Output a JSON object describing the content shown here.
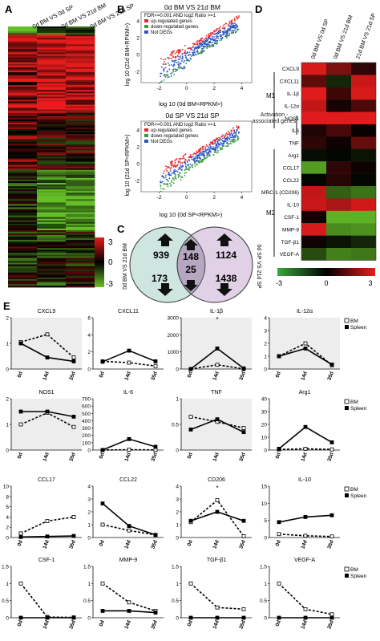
{
  "panel_letters": {
    "a": "A",
    "b": "B",
    "c": "C",
    "d": "D",
    "e": "E"
  },
  "panel_a": {
    "column_labels": [
      "0d BM VS 0d SP",
      "0d BM VS 21d BM",
      "0d BM VS 21d SP"
    ],
    "scale_ticks": [
      "3",
      "0",
      "-3"
    ]
  },
  "panel_b": {
    "top": {
      "title": "0d BM VS 21d BM",
      "xlabel": "log 10 (0d BM<RPKM>)",
      "ylabel": "log 10 (21d BM<RPKM>)",
      "legend_header": "FDR<=0.001 AND log2 Ratio >=1",
      "legend": [
        "up-regulated genes",
        "down-regulated genes",
        "Not DEGs"
      ],
      "xticks": [
        "-2",
        "0",
        "2",
        "4"
      ],
      "yticks": [
        "4",
        "2",
        "0",
        "-2"
      ]
    },
    "bottom": {
      "title": "0d SP VS 21d SP",
      "xlabel": "log 10 (0d SP<RPKM>)",
      "ylabel": "log 10 (21d SP<RPKM>)",
      "legend_header": "FDR<=0.001 AND log2 Ratio >=1",
      "legend": [
        "up-regulated genes",
        "down-regulated genes",
        "Not DEGs"
      ],
      "xticks": [
        "-2",
        "0",
        "2",
        "4"
      ],
      "yticks": [
        "4",
        "2",
        "0",
        "-2"
      ]
    },
    "colors": {
      "up": "#e8262b",
      "down": "#3c9a3c",
      "not": "#2a55c4"
    }
  },
  "panel_c": {
    "left_label": "0d BM VS 21d BM",
    "right_label": "0d SP VS 21d SP",
    "left_up": "939",
    "left_down": "173",
    "mid_up": "148",
    "mid_down": "25",
    "right_up": "1124",
    "right_down": "1438"
  },
  "panel_d": {
    "column_labels": [
      "0d BM VS 0d SP",
      "0d BM VS 21d BM",
      "21d BM VS 21d SP"
    ],
    "genes": [
      "CXCL9",
      "CXCL11",
      "IL-1β",
      "IL-12α",
      "NOS1",
      "IL6",
      "TNF",
      "Arg1",
      "CCL17",
      "CCL22",
      "MRC-1 (CD206)",
      "IL-10",
      "CSF-1",
      "MMP-9",
      "TGF-β1",
      "VEGF-A"
    ],
    "group_m1": "M1",
    "group_act": "Activation -associated genes",
    "group_m2": "M2",
    "scale_ticks": [
      "-3",
      "0",
      "3"
    ],
    "values": [
      [
        2.8,
        1.6,
        0.6
      ],
      [
        1.2,
        -0.6,
        2.6
      ],
      [
        2.9,
        0.8,
        2.8
      ],
      [
        2.5,
        0.3,
        1.0
      ],
      [
        2.9,
        2.9,
        2.9
      ],
      [
        0.4,
        0.9,
        0.1
      ],
      [
        0.6,
        0.2,
        1.3
      ],
      [
        -0.2,
        -0.1,
        -0.3
      ],
      [
        -2.5,
        0.6,
        0.2
      ],
      [
        -0.1,
        0.5,
        -0.1
      ],
      [
        2.5,
        -1.5,
        -1.8
      ],
      [
        2.6,
        2.2,
        2.7
      ],
      [
        0.2,
        -2.8,
        -2.8
      ],
      [
        2.8,
        -2.2,
        -2.3
      ],
      [
        0.2,
        -0.3,
        -0.6
      ],
      [
        -1.2,
        -2.0,
        -1.9
      ]
    ]
  },
  "chart_data": [
    {
      "type": "line",
      "title": "CXCL9",
      "x": [
        "0d",
        "14d",
        "35d"
      ],
      "ylim": [
        0,
        2
      ],
      "yticks": [
        "2",
        "1",
        "0"
      ],
      "series": [
        {
          "name": "BM",
          "values": [
            1.05,
            1.35,
            0.45
          ]
        },
        {
          "name": "Spleen",
          "values": [
            1.0,
            0.45,
            0.3
          ]
        }
      ]
    },
    {
      "type": "line",
      "title": "CXCL11",
      "x": [
        "0d",
        "14d",
        "35d"
      ],
      "ylim": [
        0,
        6
      ],
      "yticks": [
        "6",
        "4",
        "2",
        "0"
      ],
      "series": [
        {
          "name": "BM",
          "values": [
            0.9,
            0.75,
            0.35
          ]
        },
        {
          "name": "Spleen",
          "values": [
            0.85,
            2.15,
            0.9
          ]
        }
      ]
    },
    {
      "type": "line",
      "title": "IL-1β",
      "x": [
        "0d",
        "14d",
        "35d"
      ],
      "ylim": [
        0,
        3000
      ],
      "yticks": [
        "3000",
        "2000",
        "1000",
        "0"
      ],
      "series": [
        {
          "name": "BM",
          "values": [
            1,
            250,
            5
          ]
        },
        {
          "name": "Spleen",
          "values": [
            1,
            1200,
            40
          ]
        }
      ]
    },
    {
      "type": "line",
      "title": "IL-12α",
      "x": [
        "0d",
        "14d",
        "35d"
      ],
      "ylim": [
        0,
        4
      ],
      "yticks": [
        "4",
        "3",
        "2",
        "1",
        "0"
      ],
      "series": [
        {
          "name": "BM",
          "values": [
            1.0,
            2.0,
            0.3
          ]
        },
        {
          "name": "Spleen",
          "values": [
            1.0,
            1.6,
            0.35
          ]
        }
      ]
    }
  ],
  "more_charts": [
    {
      "type": "line",
      "title": "NOS1",
      "x": [
        "0d",
        "14d",
        "35d"
      ],
      "ylim": [
        0,
        2
      ],
      "yticks": [
        "2",
        "1",
        "0"
      ],
      "series": [
        {
          "name": "BM",
          "values": [
            1.0,
            1.45,
            0.9
          ]
        },
        {
          "name": "Spleen",
          "values": [
            1.5,
            1.5,
            1.3
          ]
        }
      ]
    },
    {
      "type": "line",
      "title": "IL-6",
      "x": [
        "0d",
        "14d",
        "35d"
      ],
      "ylim": [
        0,
        700
      ],
      "yticks": [
        "700",
        "600",
        "500",
        "400",
        "300",
        "200",
        "100",
        "0"
      ],
      "series": [
        {
          "name": "BM",
          "values": [
            1,
            5,
            2
          ]
        },
        {
          "name": "Spleen",
          "values": [
            1,
            150,
            45
          ]
        }
      ]
    },
    {
      "type": "line",
      "title": "TNF",
      "x": [
        "0d",
        "14d",
        "35d"
      ],
      "ylim": [
        0,
        1
      ],
      "yticks": [
        "1",
        "0.5",
        "0"
      ],
      "series": [
        {
          "name": "BM",
          "values": [
            0.65,
            0.55,
            0.43
          ]
        },
        {
          "name": "Spleen",
          "values": [
            0.4,
            0.6,
            0.35
          ]
        }
      ]
    },
    {
      "type": "line",
      "title": "Arg1",
      "x": [
        "0d",
        "14d",
        "35d"
      ],
      "ylim": [
        0,
        40
      ],
      "yticks": [
        "40",
        "30",
        "20",
        "10",
        "0"
      ],
      "series": [
        {
          "name": "BM",
          "values": [
            0.5,
            1,
            0.5
          ]
        },
        {
          "name": "Spleen",
          "values": [
            1,
            18,
            6
          ]
        }
      ]
    },
    {
      "type": "line",
      "title": "CCL17",
      "x": [
        "0d",
        "14d",
        "35d"
      ],
      "ylim": [
        0,
        10
      ],
      "yticks": [
        "10",
        "8",
        "6",
        "4",
        "2",
        "0"
      ],
      "series": [
        {
          "name": "BM",
          "values": [
            0.8,
            3.2,
            4.0
          ]
        },
        {
          "name": "Spleen",
          "values": [
            0.1,
            0.2,
            0.3
          ]
        }
      ]
    },
    {
      "type": "line",
      "title": "CCL22",
      "x": [
        "0d",
        "14d",
        "35d"
      ],
      "ylim": [
        0,
        4
      ],
      "yticks": [
        "4",
        "3",
        "2",
        "1",
        "0"
      ],
      "series": [
        {
          "name": "BM",
          "values": [
            1.0,
            0.55,
            0.2
          ]
        },
        {
          "name": "Spleen",
          "values": [
            2.65,
            0.9,
            0.2
          ]
        }
      ]
    },
    {
      "type": "line",
      "title": "CD206",
      "x": [
        "0d",
        "14d",
        "35d"
      ],
      "ylim": [
        0,
        4
      ],
      "yticks": [
        "4",
        "3",
        "2",
        "1",
        "0"
      ],
      "series": [
        {
          "name": "BM",
          "values": [
            1.2,
            2.9,
            0.1
          ]
        },
        {
          "name": "Spleen",
          "values": [
            1.3,
            2.0,
            1.3
          ]
        }
      ]
    },
    {
      "type": "line",
      "title": "IL-10",
      "x": [
        "0d",
        "14d",
        "35d"
      ],
      "ylim": [
        0,
        15
      ],
      "yticks": [
        "15",
        "10",
        "5",
        "0"
      ],
      "series": [
        {
          "name": "BM",
          "values": [
            1.0,
            0.5,
            0.3
          ]
        },
        {
          "name": "Spleen",
          "values": [
            4.5,
            6.0,
            6.5
          ]
        }
      ]
    },
    {
      "type": "line",
      "title": "CSF-1",
      "x": [
        "0d",
        "14d",
        "35d"
      ],
      "ylim": [
        0,
        1.5
      ],
      "yticks": [
        "1.5",
        "1",
        "0.5",
        "0"
      ],
      "series": [
        {
          "name": "BM",
          "values": [
            1.0,
            0.02,
            0.01
          ]
        },
        {
          "name": "Spleen",
          "values": [
            0.0,
            0.0,
            0.0
          ]
        }
      ]
    },
    {
      "type": "line",
      "title": "MMP-9",
      "x": [
        "0d",
        "14d",
        "35d"
      ],
      "ylim": [
        0,
        1.5
      ],
      "yticks": [
        "1.5",
        "1",
        "0.5",
        "0"
      ],
      "series": [
        {
          "name": "BM",
          "values": [
            1.0,
            0.45,
            0.2
          ]
        },
        {
          "name": "Spleen",
          "values": [
            0.2,
            0.2,
            0.15
          ]
        }
      ]
    },
    {
      "type": "line",
      "title": "TGF-β1",
      "x": [
        "0d",
        "14d",
        "35d"
      ],
      "ylim": [
        0,
        1.5
      ],
      "yticks": [
        "1.5",
        "1",
        "0.5",
        "0"
      ],
      "series": [
        {
          "name": "BM",
          "values": [
            1.0,
            0.3,
            0.25
          ]
        },
        {
          "name": "Spleen",
          "values": [
            0.0,
            0.0,
            0.0
          ]
        }
      ]
    },
    {
      "type": "line",
      "title": "VEGF-A",
      "x": [
        "0d",
        "14d",
        "35d"
      ],
      "ylim": [
        0,
        1.5
      ],
      "yticks": [
        "1.5",
        "1",
        "0.5",
        "0"
      ],
      "series": [
        {
          "name": "BM",
          "values": [
            1.0,
            0.25,
            0.1
          ]
        },
        {
          "name": "Spleen",
          "values": [
            0.0,
            0.0,
            0.0
          ]
        }
      ]
    }
  ],
  "legend": {
    "bm": "BM",
    "spleen": "Spleen"
  },
  "significance_mark": "*"
}
